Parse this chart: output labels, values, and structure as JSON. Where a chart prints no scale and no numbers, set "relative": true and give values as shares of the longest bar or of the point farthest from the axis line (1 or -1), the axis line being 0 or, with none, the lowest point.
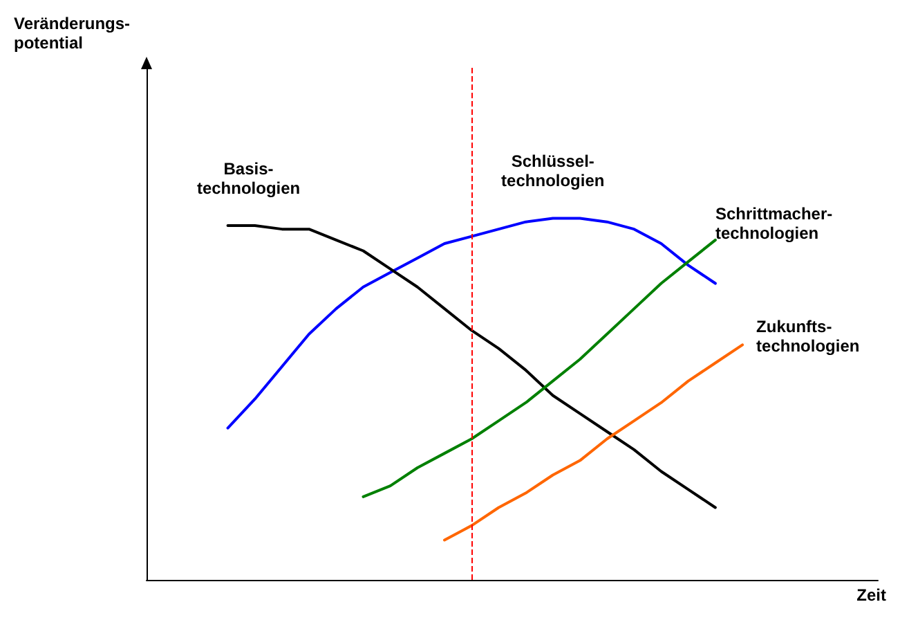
{
  "chart_data": {
    "type": "line",
    "relative": true,
    "annotations": [
      "Veränderungs-\npotential"
    ],
    "xlabel": "Zeit",
    "categories": [
      null,
      null,
      null,
      null,
      null,
      null,
      null,
      null,
      null,
      null,
      null,
      null,
      null,
      null,
      null,
      null,
      null,
      null,
      null,
      null,
      null,
      null,
      null,
      null,
      null,
      null,
      null,
      null
    ],
    "series": [
      {
        "name": "Schlüssel-\ntechnologien",
        "color": "#0000ff",
        "values": [
          null,
          null,
          null,
          0.42,
          0.5,
          0.59,
          0.68,
          0.75,
          0.81,
          0.85,
          0.89,
          0.93,
          0.95,
          0.97,
          0.99,
          1.0,
          1.0,
          0.99,
          0.97,
          0.93,
          0.87,
          0.82,
          null,
          null,
          null,
          null,
          null,
          null
        ]
      },
      {
        "name": "Basis-\ntechnologien",
        "color": "#000000",
        "values": [
          null,
          null,
          null,
          0.98,
          0.98,
          0.97,
          0.97,
          0.94,
          0.91,
          0.86,
          0.81,
          0.75,
          0.69,
          0.64,
          0.58,
          0.51,
          0.46,
          0.41,
          0.36,
          0.3,
          0.25,
          0.2,
          null,
          null,
          null,
          null,
          null,
          null
        ]
      },
      {
        "name": "Schrittmacher-\ntechnologien",
        "color": "#008000",
        "values": [
          null,
          null,
          null,
          null,
          null,
          null,
          null,
          null,
          0.23,
          0.26,
          0.31,
          0.35,
          0.39,
          0.44,
          0.49,
          0.55,
          0.61,
          0.68,
          0.75,
          0.82,
          0.88,
          0.94,
          null,
          null,
          null,
          null,
          null,
          null
        ]
      },
      {
        "name": "Zukunfts-\ntechnologien",
        "color": "#ff6600",
        "values": [
          null,
          null,
          null,
          null,
          null,
          null,
          null,
          null,
          null,
          null,
          null,
          0.11,
          0.15,
          0.2,
          0.24,
          0.29,
          0.33,
          0.39,
          0.44,
          0.49,
          0.55,
          0.6,
          0.65,
          null,
          null,
          null,
          null,
          null
        ]
      }
    ],
    "grid": false,
    "legend": false,
    "marker": "none",
    "line_style": "solid"
  }
}
